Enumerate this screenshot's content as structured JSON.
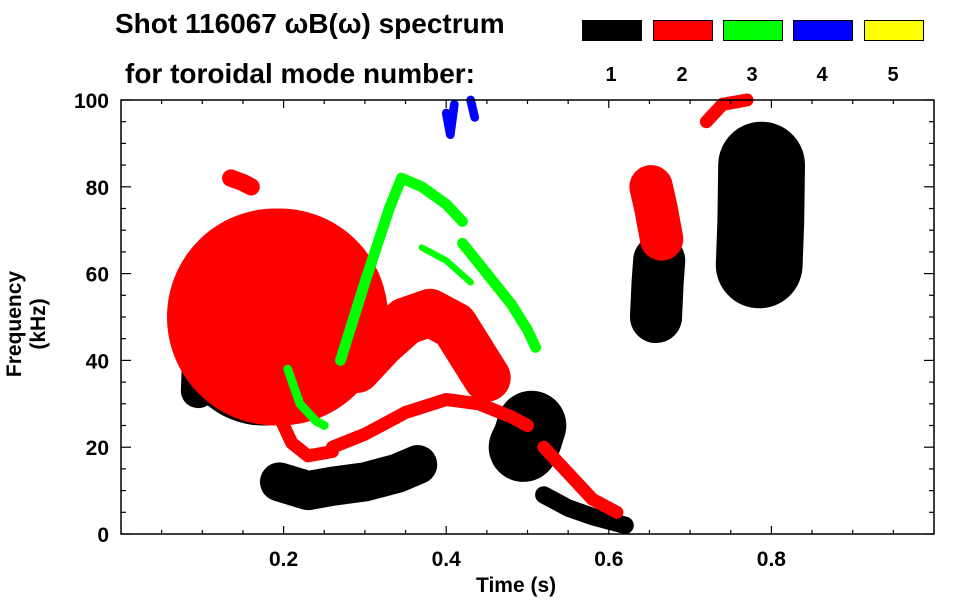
{
  "chart_data": {
    "type": "heatmap",
    "title_line1": "Shot 116067 ωB(ω) spectrum",
    "title_line2": "for toroidal mode number:",
    "xlabel": "Time (s)",
    "ylabel": "Frequency (kHz)",
    "xlim": [
      0.0,
      1.0
    ],
    "ylim": [
      0,
      100
    ],
    "xticks": [
      0.2,
      0.4,
      0.6,
      0.8
    ],
    "xtick_labels": [
      "0.2",
      "0.4",
      "0.6",
      "0.8"
    ],
    "yticks": [
      0,
      20,
      40,
      60,
      80,
      100
    ],
    "ytick_labels": [
      "0",
      "20",
      "40",
      "60",
      "80",
      "100"
    ],
    "legend": [
      {
        "label": "1",
        "color": "#000000"
      },
      {
        "label": "2",
        "color": "#ff0000"
      },
      {
        "label": "3",
        "color": "#00ff00"
      },
      {
        "label": "4",
        "color": "#0000ff"
      },
      {
        "label": "5",
        "color": "#ffff00"
      }
    ],
    "features": [
      {
        "mode": 1,
        "width_khz": 8,
        "points": [
          [
            0.095,
            33
          ],
          [
            0.097,
            43
          ],
          [
            0.1,
            50
          ]
        ]
      },
      {
        "mode": 1,
        "width_khz": 12,
        "points": [
          [
            0.115,
            55
          ],
          [
            0.135,
            58
          ],
          [
            0.155,
            60
          ],
          [
            0.17,
            55
          ]
        ]
      },
      {
        "mode": 1,
        "width_khz": 40,
        "points": [
          [
            0.175,
            45
          ],
          [
            0.18,
            45
          ]
        ]
      },
      {
        "mode": 1,
        "width_khz": 30,
        "points": [
          [
            0.195,
            50
          ],
          [
            0.2,
            50
          ]
        ]
      },
      {
        "mode": 1,
        "width_khz": 25,
        "points": [
          [
            0.215,
            50
          ],
          [
            0.22,
            48
          ]
        ]
      },
      {
        "mode": 1,
        "width_khz": 9,
        "points": [
          [
            0.195,
            12
          ],
          [
            0.23,
            10
          ],
          [
            0.26,
            11
          ],
          [
            0.3,
            12
          ],
          [
            0.34,
            14
          ],
          [
            0.365,
            16
          ]
        ]
      },
      {
        "mode": 1,
        "width_khz": 16,
        "points": [
          [
            0.495,
            20
          ],
          [
            0.5,
            22
          ],
          [
            0.505,
            25
          ]
        ]
      },
      {
        "mode": 1,
        "width_khz": 4,
        "points": [
          [
            0.52,
            9
          ],
          [
            0.55,
            6
          ],
          [
            0.58,
            4
          ],
          [
            0.62,
            2
          ]
        ]
      },
      {
        "mode": 1,
        "width_khz": 12,
        "points": [
          [
            0.658,
            50
          ],
          [
            0.66,
            58
          ],
          [
            0.662,
            63
          ]
        ]
      },
      {
        "mode": 1,
        "width_khz": 20,
        "points": [
          [
            0.785,
            62
          ],
          [
            0.787,
            72
          ],
          [
            0.788,
            85
          ]
        ]
      },
      {
        "mode": 2,
        "width_khz": 4,
        "points": [
          [
            0.135,
            82
          ],
          [
            0.15,
            81
          ],
          [
            0.16,
            80
          ]
        ]
      },
      {
        "mode": 2,
        "width_khz": 50,
        "points": [
          [
            0.19,
            50
          ],
          [
            0.195,
            50
          ]
        ]
      },
      {
        "mode": 2,
        "width_khz": 3,
        "points": [
          [
            0.195,
            27
          ],
          [
            0.21,
            21
          ],
          [
            0.23,
            18
          ],
          [
            0.26,
            19
          ]
        ]
      },
      {
        "mode": 2,
        "width_khz": 3,
        "points": [
          [
            0.26,
            20
          ],
          [
            0.3,
            23
          ],
          [
            0.35,
            28
          ],
          [
            0.4,
            31
          ],
          [
            0.44,
            30
          ],
          [
            0.48,
            27
          ],
          [
            0.5,
            25
          ]
        ]
      },
      {
        "mode": 2,
        "width_khz": 11,
        "points": [
          [
            0.29,
            38
          ],
          [
            0.32,
            44
          ],
          [
            0.35,
            49
          ],
          [
            0.38,
            51
          ],
          [
            0.41,
            48
          ],
          [
            0.43,
            42
          ],
          [
            0.45,
            36
          ]
        ]
      },
      {
        "mode": 2,
        "width_khz": 3,
        "points": [
          [
            0.52,
            20
          ],
          [
            0.55,
            14
          ],
          [
            0.58,
            8
          ],
          [
            0.61,
            5
          ]
        ]
      },
      {
        "mode": 2,
        "width_khz": 10,
        "points": [
          [
            0.652,
            80
          ],
          [
            0.658,
            75
          ],
          [
            0.665,
            68
          ]
        ]
      },
      {
        "mode": 2,
        "width_khz": 3,
        "points": [
          [
            0.72,
            95
          ],
          [
            0.74,
            99
          ],
          [
            0.77,
            100
          ]
        ]
      },
      {
        "mode": 3,
        "width_khz": 2,
        "points": [
          [
            0.205,
            38
          ],
          [
            0.22,
            30
          ],
          [
            0.24,
            26
          ],
          [
            0.25,
            25
          ]
        ]
      },
      {
        "mode": 3,
        "width_khz": 2.5,
        "points": [
          [
            0.27,
            40
          ],
          [
            0.3,
            58
          ],
          [
            0.33,
            75
          ],
          [
            0.345,
            82
          ],
          [
            0.37,
            80
          ],
          [
            0.4,
            76
          ],
          [
            0.42,
            72
          ]
        ]
      },
      {
        "mode": 3,
        "width_khz": 2.5,
        "points": [
          [
            0.42,
            67
          ],
          [
            0.45,
            60
          ],
          [
            0.48,
            53
          ],
          [
            0.5,
            47
          ],
          [
            0.51,
            43
          ]
        ]
      },
      {
        "mode": 3,
        "width_khz": 1.5,
        "points": [
          [
            0.37,
            66
          ],
          [
            0.4,
            63
          ],
          [
            0.43,
            58
          ]
        ]
      },
      {
        "mode": 4,
        "width_khz": 2,
        "points": [
          [
            0.4,
            97
          ],
          [
            0.405,
            92
          ],
          [
            0.41,
            99
          ]
        ]
      },
      {
        "mode": 4,
        "width_khz": 2,
        "points": [
          [
            0.43,
            100
          ],
          [
            0.435,
            96
          ]
        ]
      }
    ]
  }
}
